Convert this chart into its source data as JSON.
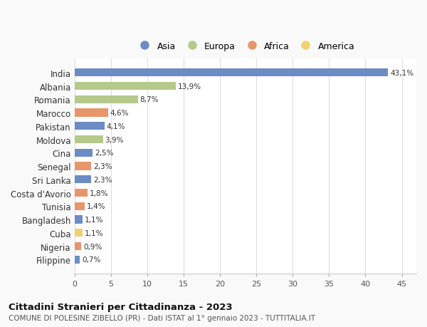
{
  "categories": [
    "India",
    "Albania",
    "Romania",
    "Marocco",
    "Pakistan",
    "Moldova",
    "Cina",
    "Senegal",
    "Sri Lanka",
    "Costa d'Avorio",
    "Tunisia",
    "Bangladesh",
    "Cuba",
    "Nigeria",
    "Filippine"
  ],
  "values": [
    43.1,
    13.9,
    8.7,
    4.6,
    4.1,
    3.9,
    2.5,
    2.3,
    2.3,
    1.8,
    1.4,
    1.1,
    1.1,
    0.9,
    0.7
  ],
  "labels": [
    "43,1%",
    "13,9%",
    "8,7%",
    "4,6%",
    "4,1%",
    "3,9%",
    "2,5%",
    "2,3%",
    "2,3%",
    "1,8%",
    "1,4%",
    "1,1%",
    "1,1%",
    "0,9%",
    "0,7%"
  ],
  "continents": [
    "Asia",
    "Europa",
    "Europa",
    "Africa",
    "Asia",
    "Europa",
    "Asia",
    "Africa",
    "Asia",
    "Africa",
    "Africa",
    "Asia",
    "America",
    "Africa",
    "Asia"
  ],
  "colors": {
    "Asia": "#6b8cc4",
    "Europa": "#b5c98a",
    "Africa": "#e8956b",
    "America": "#f0d070"
  },
  "legend_order": [
    "Asia",
    "Europa",
    "Africa",
    "America"
  ],
  "xlim": [
    0,
    47
  ],
  "xticks": [
    0,
    5,
    10,
    15,
    20,
    25,
    30,
    35,
    40,
    45
  ],
  "title1": "Cittadini Stranieri per Cittadinanza - 2023",
  "title2": "COMUNE DI POLESINE ZIBELLO (PR) - Dati ISTAT al 1° gennaio 2023 - TUTTITALIA.IT",
  "background_color": "#f9f9f9",
  "plot_bg_color": "#ffffff"
}
